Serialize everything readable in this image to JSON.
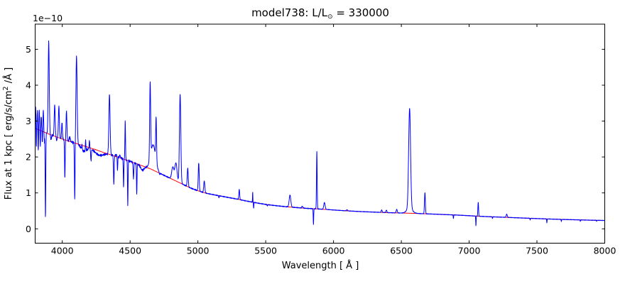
{
  "title": {
    "prefix": "model738: L/L",
    "sun_symbol": "⊙",
    "suffix": " = 330000"
  },
  "axes": {
    "xlabel": "Wavelength [ Å ]",
    "ylabel": {
      "prefix": "Flux at 1 kpc [ erg/s/cm",
      "sup": "2",
      "suffix": " /Å ]"
    },
    "offset_label": "1e−10"
  },
  "chart_data": {
    "type": "line",
    "title": "model738: L/L⊙ = 330000",
    "xlabel": "Wavelength [ Å ]",
    "ylabel": "Flux at 1 kpc [ erg/s/cm2 /Å ]",
    "y_scale_factor": "1e-10",
    "xlim": [
      3800,
      8000
    ],
    "ylim": [
      -0.4,
      5.7
    ],
    "xticks": [
      4000,
      4500,
      5000,
      5500,
      6000,
      6500,
      7000,
      7500,
      8000
    ],
    "yticks": [
      0,
      1,
      2,
      3,
      4,
      5
    ],
    "grid": false,
    "legend": null,
    "tick_direction": "in",
    "series": [
      {
        "name": "observed-spectrum",
        "color": "#0000ff",
        "construction": "continuum_points + gaussian line_features + small noise"
      },
      {
        "name": "continuum-fit",
        "color": "#ff0000",
        "construction": "continuum_points only (smooth declining fit)"
      }
    ],
    "continuum_points": [
      [
        3800,
        2.8
      ],
      [
        3850,
        2.72
      ],
      [
        3900,
        2.64
      ],
      [
        3950,
        2.57
      ],
      [
        4000,
        2.5
      ],
      [
        4050,
        2.44
      ],
      [
        4100,
        2.38
      ],
      [
        4150,
        2.32
      ],
      [
        4200,
        2.26
      ],
      [
        4250,
        2.2
      ],
      [
        4300,
        2.13
      ],
      [
        4350,
        2.07
      ],
      [
        4400,
        2.01
      ],
      [
        4450,
        1.945
      ],
      [
        4500,
        1.88
      ],
      [
        4550,
        1.81
      ],
      [
        4600,
        1.74
      ],
      [
        4650,
        1.67
      ],
      [
        4700,
        1.58
      ],
      [
        4750,
        1.49
      ],
      [
        4800,
        1.4
      ],
      [
        4850,
        1.31
      ],
      [
        4900,
        1.22
      ],
      [
        4950,
        1.13
      ],
      [
        5000,
        1.06
      ],
      [
        5050,
        1.0
      ],
      [
        5100,
        0.96
      ],
      [
        5150,
        0.925
      ],
      [
        5200,
        0.89
      ],
      [
        5250,
        0.855
      ],
      [
        5300,
        0.82
      ],
      [
        5350,
        0.78
      ],
      [
        5400,
        0.745
      ],
      [
        5450,
        0.71
      ],
      [
        5500,
        0.68
      ],
      [
        5550,
        0.655
      ],
      [
        5600,
        0.635
      ],
      [
        5650,
        0.615
      ],
      [
        5700,
        0.6
      ],
      [
        5750,
        0.585
      ],
      [
        5800,
        0.57
      ],
      [
        5850,
        0.56
      ],
      [
        5900,
        0.55
      ],
      [
        5950,
        0.538
      ],
      [
        6000,
        0.525
      ],
      [
        6050,
        0.512
      ],
      [
        6100,
        0.5
      ],
      [
        6150,
        0.49
      ],
      [
        6200,
        0.48
      ],
      [
        6300,
        0.465
      ],
      [
        6400,
        0.45
      ],
      [
        6500,
        0.44
      ],
      [
        6600,
        0.43
      ],
      [
        6700,
        0.415
      ],
      [
        6800,
        0.4
      ],
      [
        6900,
        0.385
      ],
      [
        7000,
        0.365
      ],
      [
        7100,
        0.345
      ],
      [
        7200,
        0.33
      ],
      [
        7300,
        0.315
      ],
      [
        7400,
        0.3
      ],
      [
        7500,
        0.285
      ],
      [
        7600,
        0.272
      ],
      [
        7700,
        0.26
      ],
      [
        7800,
        0.25
      ],
      [
        7900,
        0.24
      ],
      [
        8000,
        0.232
      ]
    ],
    "line_features_format": [
      "wavelength_A",
      "amplitude_1e-10_flux",
      "sigma_A"
    ],
    "line_features": [
      [
        3803,
        0.62,
        2.5
      ],
      [
        3809,
        -0.55,
        1.8
      ],
      [
        3816,
        0.5,
        2.5
      ],
      [
        3823,
        -0.62,
        1.8
      ],
      [
        3830,
        0.54,
        2.5
      ],
      [
        3838,
        -0.45,
        1.8
      ],
      [
        3845,
        0.42,
        2.5
      ],
      [
        3853,
        -0.35,
        1.8
      ],
      [
        3860,
        0.6,
        2.5
      ],
      [
        3868,
        -0.25,
        1.8
      ],
      [
        3876,
        -2.4,
        2.2
      ],
      [
        3900,
        2.58,
        4
      ],
      [
        3917,
        -0.14,
        3
      ],
      [
        3944,
        0.88,
        3.5
      ],
      [
        3959,
        -0.1,
        2.5
      ],
      [
        3975,
        0.88,
        3.5
      ],
      [
        3998,
        0.45,
        3
      ],
      [
        4019,
        -1.07,
        2.3
      ],
      [
        4031,
        0.82,
        3.2
      ],
      [
        4055,
        0.12,
        4
      ],
      [
        4092,
        -1.61,
        2.4
      ],
      [
        4105,
        2.42,
        4.5
      ],
      [
        4145,
        0.15,
        2
      ],
      [
        4160,
        -0.15,
        20
      ],
      [
        4172,
        0.3,
        2
      ],
      [
        4200,
        0.24,
        2
      ],
      [
        4212,
        -0.33,
        2.5
      ],
      [
        4270,
        -0.12,
        30
      ],
      [
        4348,
        1.67,
        4.5
      ],
      [
        4380,
        -0.8,
        2.5
      ],
      [
        4398,
        0.06,
        4
      ],
      [
        4407,
        -0.38,
        2
      ],
      [
        4425,
        0.07,
        4
      ],
      [
        4452,
        -0.78,
        2
      ],
      [
        4464,
        1.08,
        2.2
      ],
      [
        4483,
        -1.25,
        2
      ],
      [
        4525,
        -0.45,
        2.5
      ],
      [
        4549,
        -0.85,
        2
      ],
      [
        4590,
        -0.12,
        12
      ],
      [
        4648,
        2.1,
        3.5
      ],
      [
        4670,
        0.7,
        18
      ],
      [
        4692,
        1.2,
        3
      ],
      [
        4718,
        -0.05,
        3
      ],
      [
        4815,
        0.35,
        8
      ],
      [
        4838,
        0.5,
        8
      ],
      [
        4869,
        2.47,
        5
      ],
      [
        4925,
        0.52,
        3.5
      ],
      [
        5006,
        0.78,
        3.5
      ],
      [
        5047,
        0.33,
        4
      ],
      [
        5155,
        -0.06,
        1.5
      ],
      [
        5305,
        0.28,
        3
      ],
      [
        5404,
        0.29,
        1.2
      ],
      [
        5411,
        -0.17,
        1.5
      ],
      [
        5512,
        -0.04,
        2
      ],
      [
        5679,
        0.33,
        6
      ],
      [
        5770,
        0.05,
        4
      ],
      [
        5852,
        -0.44,
        1.8
      ],
      [
        5877,
        1.6,
        2.4
      ],
      [
        5933,
        0.19,
        5
      ],
      [
        6100,
        0.03,
        4
      ],
      [
        6355,
        0.07,
        3.5
      ],
      [
        6390,
        0.07,
        3.5
      ],
      [
        6466,
        0.1,
        4
      ],
      [
        6561,
        2.78,
        7
      ],
      [
        6561,
        0.14,
        20
      ],
      [
        6674,
        0.59,
        3.2
      ],
      [
        6884,
        -0.1,
        1.5
      ],
      [
        7050,
        -0.27,
        1.5
      ],
      [
        7067,
        0.39,
        2.5
      ],
      [
        7172,
        -0.05,
        1.5
      ],
      [
        7277,
        0.09,
        4
      ],
      [
        7450,
        -0.05,
        1.5
      ],
      [
        7573,
        -0.11,
        1.5
      ],
      [
        7680,
        -0.06,
        1.5
      ],
      [
        7820,
        -0.04,
        1.5
      ],
      [
        7940,
        -0.03,
        1.5
      ]
    ],
    "noise_amplitude_by_region": [
      [
        3872,
        0.05
      ],
      [
        4080,
        0.035
      ],
      [
        4620,
        0.03
      ],
      [
        5050,
        0.015
      ],
      [
        5900,
        0.01
      ],
      [
        8000,
        0.006
      ]
    ]
  }
}
